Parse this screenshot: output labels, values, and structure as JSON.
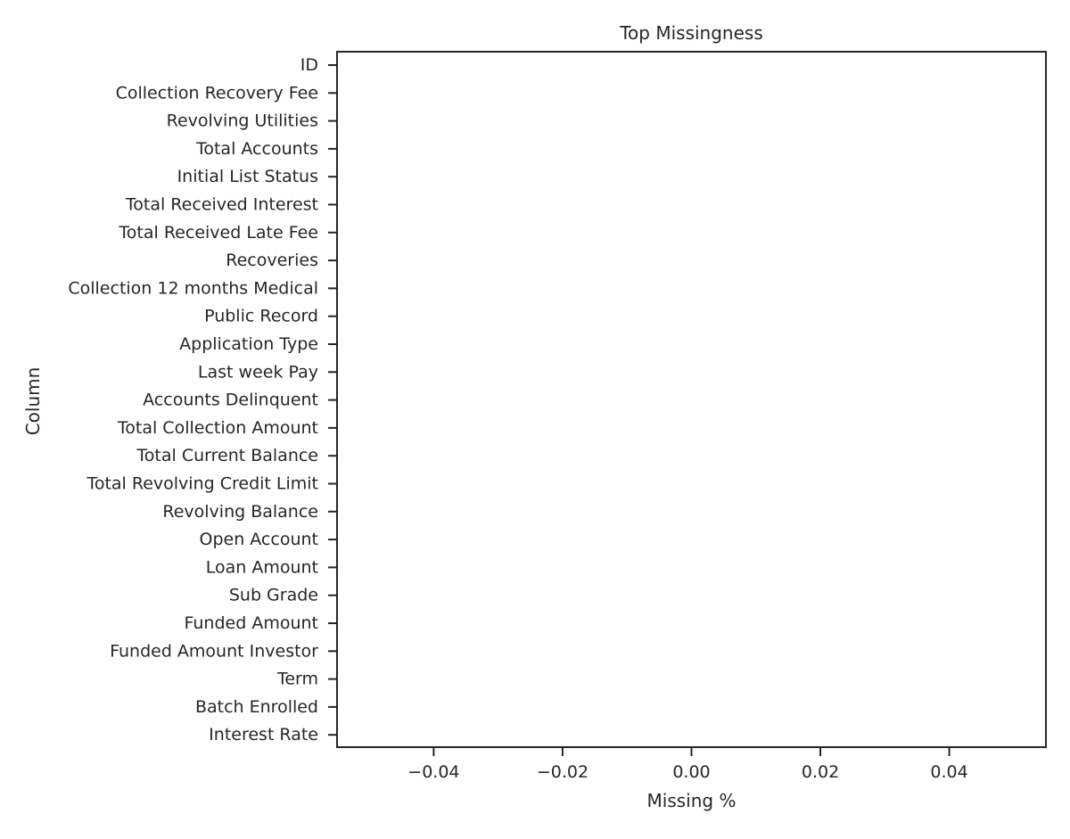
{
  "chart_data": {
    "type": "bar",
    "orientation": "horizontal",
    "title": "Top Missingness",
    "xlabel": "Missing %",
    "ylabel": "Column",
    "categories": [
      "ID",
      "Collection Recovery Fee",
      "Revolving Utilities",
      "Total Accounts",
      "Initial List Status",
      "Total Received Interest",
      "Total Received Late Fee",
      "Recoveries",
      "Collection 12 months Medical",
      "Public Record",
      "Application Type",
      "Last week Pay",
      "Accounts Delinquent",
      "Total Collection Amount",
      "Total Current Balance",
      "Total Revolving Credit Limit",
      "Revolving Balance",
      "Open Account",
      "Loan Amount",
      "Sub Grade",
      "Funded Amount",
      "Funded Amount Investor",
      "Term",
      "Batch Enrolled",
      "Interest Rate"
    ],
    "values": [
      0,
      0,
      0,
      0,
      0,
      0,
      0,
      0,
      0,
      0,
      0,
      0,
      0,
      0,
      0,
      0,
      0,
      0,
      0,
      0,
      0,
      0,
      0,
      0,
      0
    ],
    "xlim": [
      -0.055,
      0.055
    ],
    "xticks": [
      -0.04,
      -0.02,
      0.0,
      0.02,
      0.04
    ],
    "xtick_labels": [
      "−0.04",
      "−0.02",
      "0.00",
      "0.02",
      "0.04"
    ],
    "grid": false,
    "legend": "none",
    "colors": {
      "axes": "#262626",
      "text": "#262626",
      "background": "#ffffff"
    }
  }
}
